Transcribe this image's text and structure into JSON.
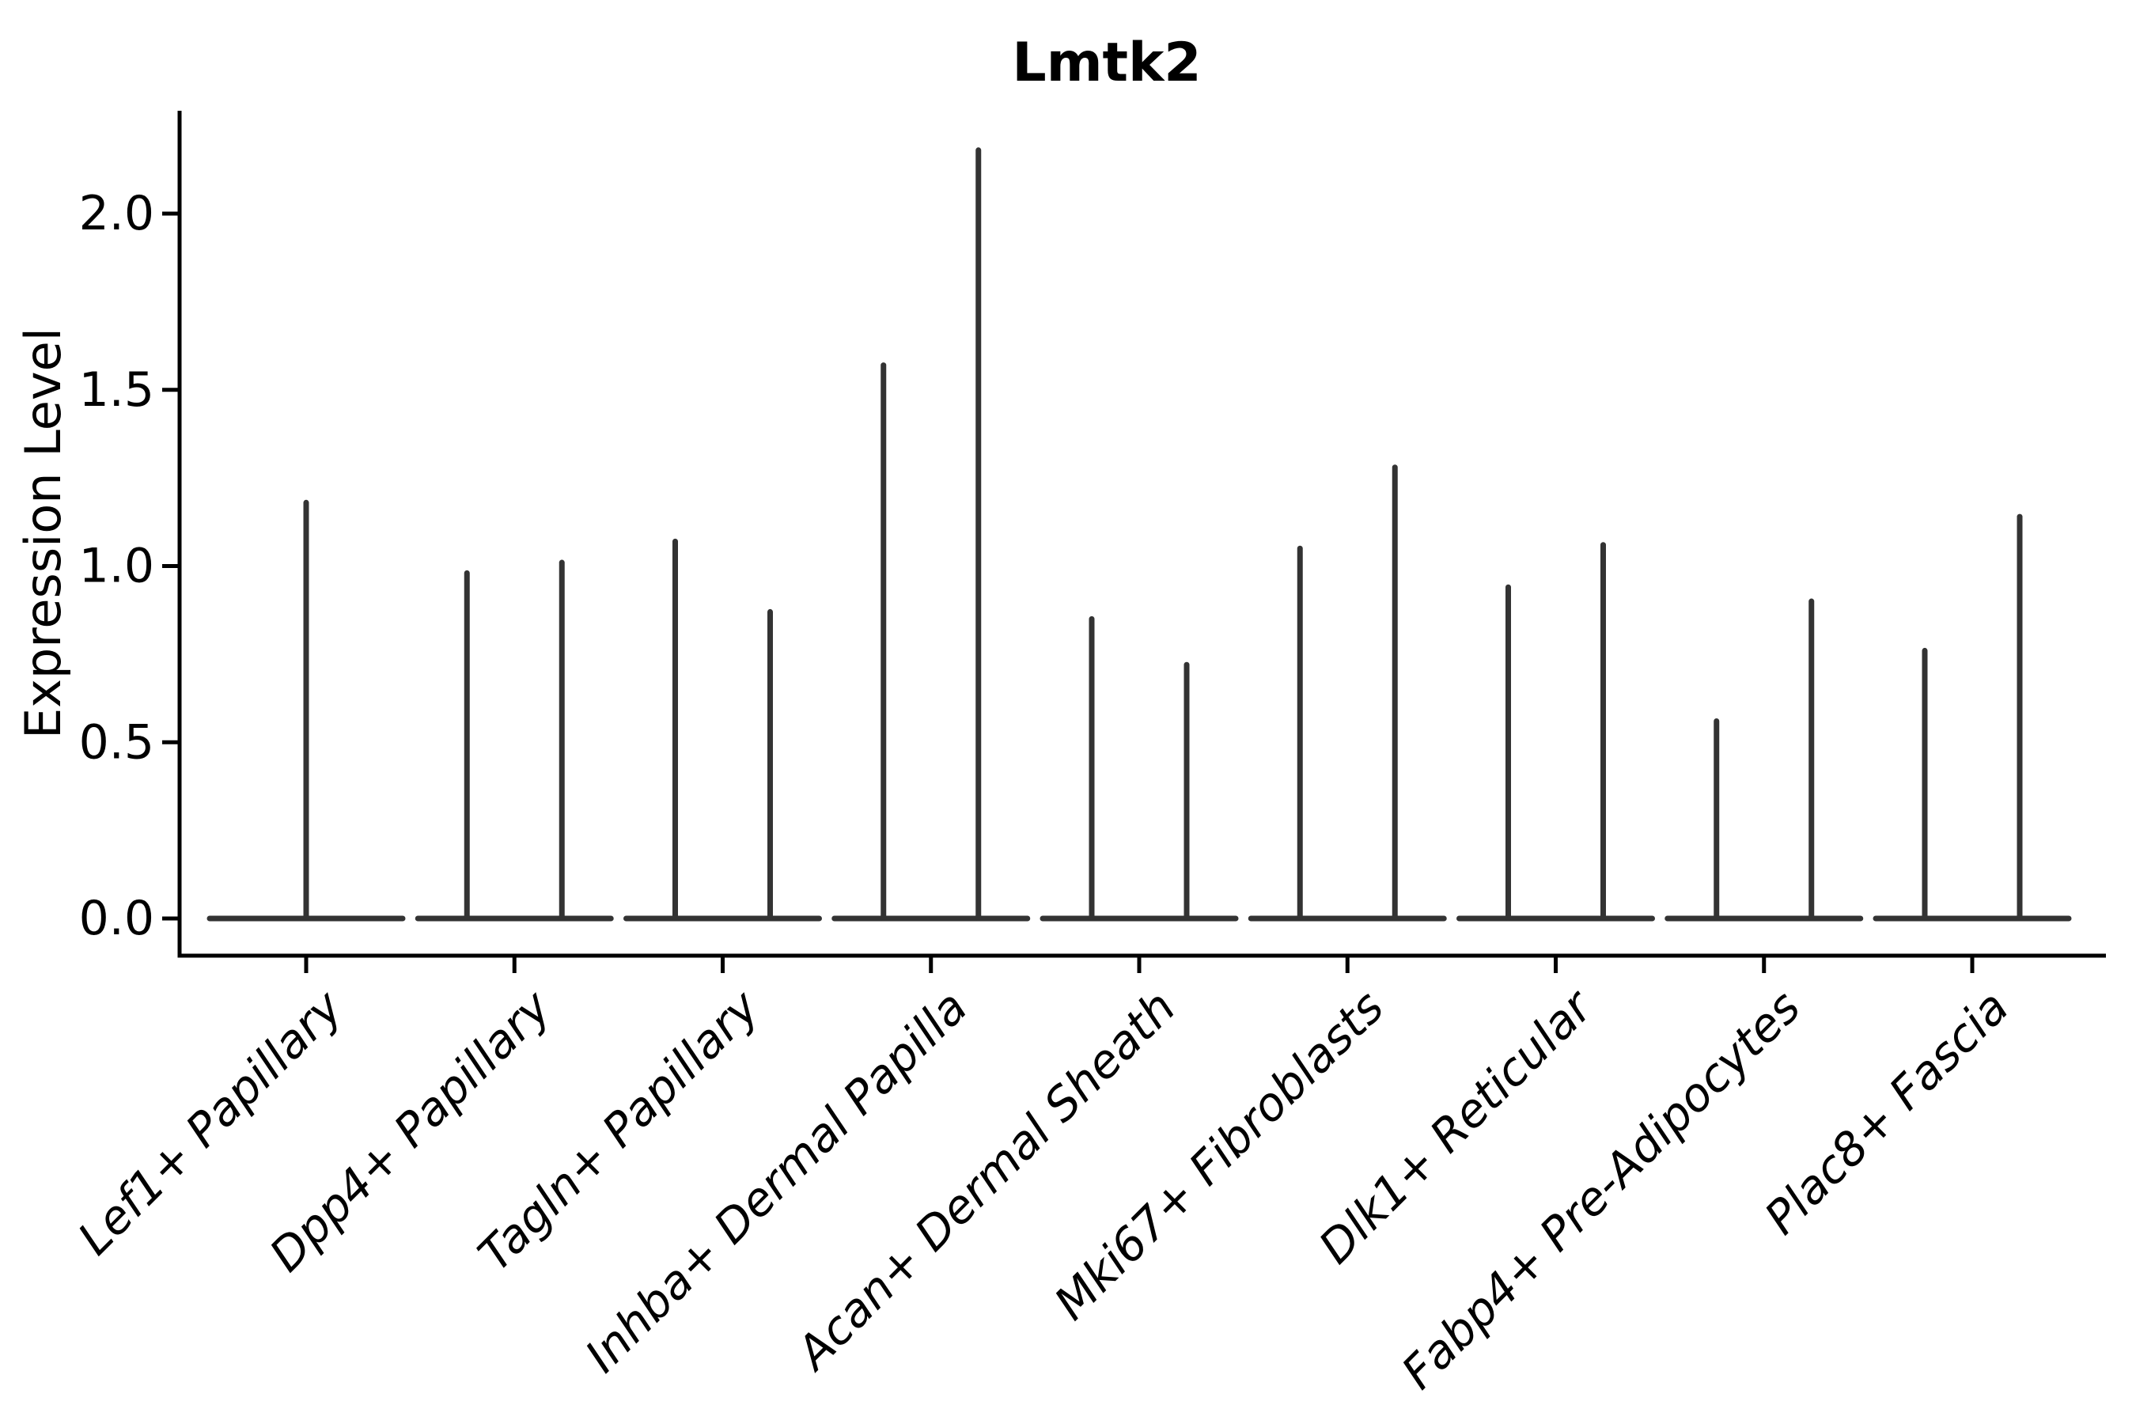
{
  "chart_data": {
    "type": "violin",
    "title": "Lmtk2",
    "xlabel": "",
    "ylabel": "Expression Level",
    "yticks": [
      "0.0",
      "0.5",
      "1.0",
      "1.5",
      "2.0"
    ],
    "ylim": [
      -0.1,
      2.29
    ],
    "grid": false,
    "legend": "none",
    "x_tick_label_rotation_deg": 45,
    "x_tick_label_style": "italic",
    "description": "Single-cell gene expression violin plot (Seurat/VlnPlot style) for gene Lmtk2. Expression is ~0 for most cells in every cluster, so each violin collapses to a flat base at 0 with thin density spikes rising to the maximum expression value. Most clusters show two spikes (split violins, two groups per cluster); the first cluster shows a single centered spike.",
    "categories": [
      "Lef1+ Papillary",
      "Dpp4+ Papillary",
      "Tagln+ Papillary",
      "Inhba+ Dermal Papilla",
      "Acan+ Dermal Sheath",
      "Mki67+ Fibroblasts",
      "Dlk1+ Reticular",
      "Fabp4+ Pre-Adipocytes",
      "Plac8+ Fascia"
    ],
    "violins": [
      {
        "category": "Lef1+ Papillary",
        "spikes": [
          {
            "position": "center",
            "max": 1.18
          }
        ]
      },
      {
        "category": "Dpp4+ Papillary",
        "spikes": [
          {
            "position": "left",
            "max": 0.98
          },
          {
            "position": "right",
            "max": 1.01
          }
        ]
      },
      {
        "category": "Tagln+ Papillary",
        "spikes": [
          {
            "position": "left",
            "max": 1.07
          },
          {
            "position": "right",
            "max": 0.87
          }
        ]
      },
      {
        "category": "Inhba+ Dermal Papilla",
        "spikes": [
          {
            "position": "left",
            "max": 1.57
          },
          {
            "position": "right",
            "max": 2.18
          }
        ]
      },
      {
        "category": "Acan+ Dermal Sheath",
        "spikes": [
          {
            "position": "left",
            "max": 0.85
          },
          {
            "position": "right",
            "max": 0.72
          }
        ]
      },
      {
        "category": "Mki67+ Fibroblasts",
        "spikes": [
          {
            "position": "left",
            "max": 1.05
          },
          {
            "position": "right",
            "max": 1.28
          }
        ]
      },
      {
        "category": "Dlk1+ Reticular",
        "spikes": [
          {
            "position": "left",
            "max": 0.94
          },
          {
            "position": "right",
            "max": 1.06
          }
        ]
      },
      {
        "category": "Fabp4+ Pre-Adipocytes",
        "spikes": [
          {
            "position": "left",
            "max": 0.56
          },
          {
            "position": "right",
            "max": 0.9
          }
        ]
      },
      {
        "category": "Plac8+ Fascia",
        "spikes": [
          {
            "position": "left",
            "max": 0.76
          },
          {
            "position": "right",
            "max": 1.14
          }
        ]
      }
    ],
    "colors": {
      "violin_line": "#333333",
      "axis": "#000000",
      "text": "#000000",
      "background": "#ffffff"
    }
  }
}
